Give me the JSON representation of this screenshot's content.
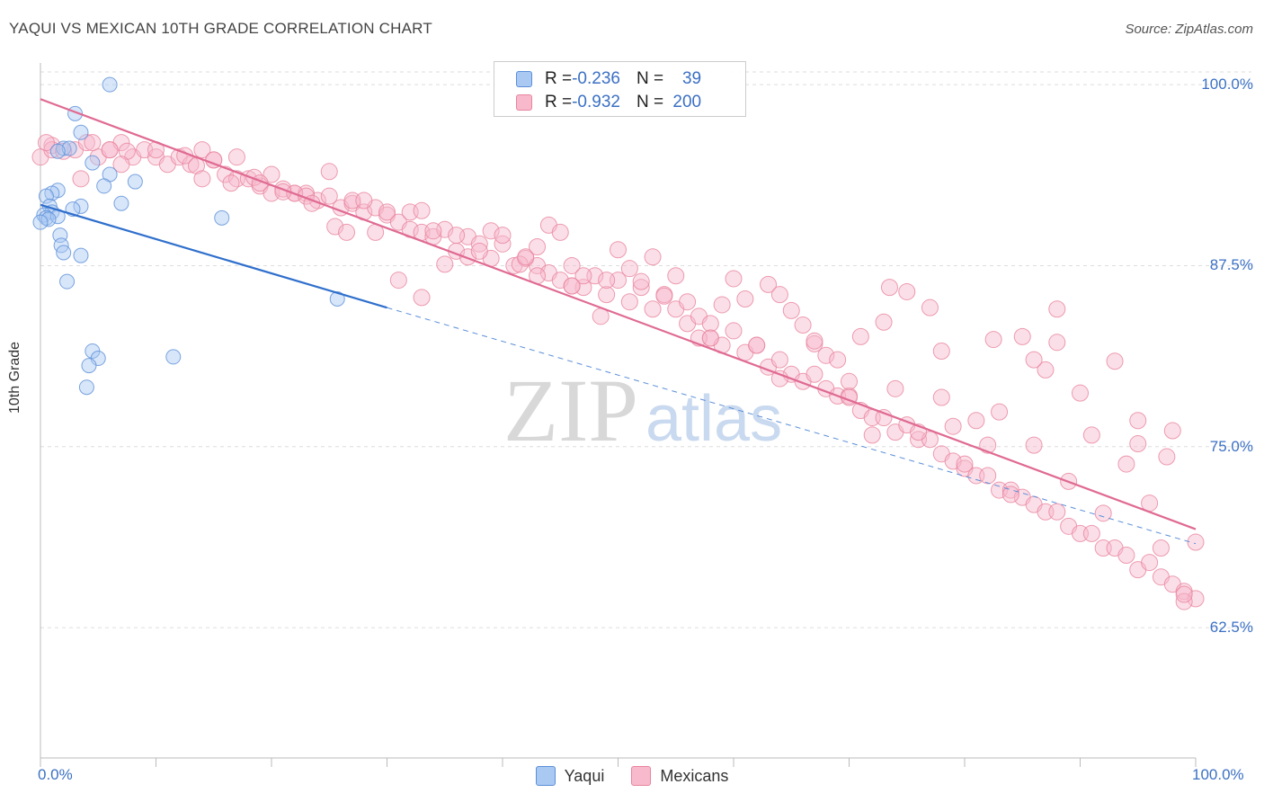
{
  "title": "YAQUI VS MEXICAN 10TH GRADE CORRELATION CHART",
  "source": "Source: ZipAtlas.com",
  "watermark": {
    "zip": "ZIP",
    "atlas": "atlas"
  },
  "legend": {
    "rows": [
      {
        "r_label": "R = ",
        "r_value": "-0.236",
        "n_label": "N = ",
        "n_value": "39",
        "color": "#a9c8f2",
        "border": "#5b8fd8"
      },
      {
        "r_label": "R = ",
        "r_value": "-0.932",
        "n_label": "N = ",
        "n_value": "200",
        "color": "#f7b9cb",
        "border": "#e8849f"
      }
    ]
  },
  "chart_data": {
    "type": "scatter",
    "xlabel": "",
    "ylabel": "10th Grade",
    "xlim": [
      0,
      100
    ],
    "ylim": [
      53.5,
      101.5
    ],
    "x_tick_labels": [
      "0.0%",
      "100.0%"
    ],
    "y_ticks": [
      {
        "value": 62.5,
        "label": "62.5%"
      },
      {
        "value": 75.0,
        "label": "75.0%"
      },
      {
        "value": 87.5,
        "label": "87.5%"
      },
      {
        "value": 100.0,
        "label": "100.0%"
      }
    ],
    "grid": true,
    "series": [
      {
        "name": "Yaqui",
        "color": "#5b8fd8",
        "fill": "#a9c8f2",
        "trend": {
          "x0": 0,
          "y0": 91.7,
          "x1": 30,
          "y1": 84.6,
          "dash_to_x": 100,
          "dash_to_y": 68.3
        },
        "points": [
          [
            6,
            100
          ],
          [
            3,
            98
          ],
          [
            3.5,
            96.7
          ],
          [
            2,
            95.6
          ],
          [
            2.5,
            95.6
          ],
          [
            1.5,
            95.4
          ],
          [
            4.5,
            94.6
          ],
          [
            6,
            93.8
          ],
          [
            8.2,
            93.3
          ],
          [
            5.5,
            93
          ],
          [
            1.5,
            92.7
          ],
          [
            1,
            92.5
          ],
          [
            0.5,
            92.3
          ],
          [
            7,
            91.8
          ],
          [
            3.5,
            91.6
          ],
          [
            2.8,
            91.4
          ],
          [
            0.8,
            91.6
          ],
          [
            1,
            91.2
          ],
          [
            0.3,
            91
          ],
          [
            0.5,
            90.8
          ],
          [
            1.5,
            90.9
          ],
          [
            0.7,
            90.7
          ],
          [
            0,
            90.5
          ],
          [
            15.7,
            90.8
          ],
          [
            1.7,
            89.6
          ],
          [
            1.8,
            88.9
          ],
          [
            2,
            88.4
          ],
          [
            3.5,
            88.2
          ],
          [
            2.3,
            86.4
          ],
          [
            25.7,
            85.2
          ],
          [
            4.5,
            81.6
          ],
          [
            5,
            81.1
          ],
          [
            11.5,
            81.2
          ],
          [
            4.2,
            80.6
          ],
          [
            4,
            79.1
          ]
        ]
      },
      {
        "name": "Mexicans",
        "color": "#e8849f",
        "fill": "#f7b9cb",
        "trend": {
          "x0": 0,
          "y0": 99.0,
          "x1": 100,
          "y1": 69.3
        },
        "points": [
          [
            0,
            95
          ],
          [
            1,
            95.8
          ],
          [
            3,
            95.5
          ],
          [
            4,
            96
          ],
          [
            5,
            95
          ],
          [
            6,
            95.5
          ],
          [
            7,
            96
          ],
          [
            8,
            95
          ],
          [
            9,
            95.5
          ],
          [
            10,
            95
          ],
          [
            11,
            94.5
          ],
          [
            12,
            95
          ],
          [
            13,
            94.5
          ],
          [
            14,
            95.5
          ],
          [
            15,
            94.8
          ],
          [
            16,
            93.8
          ],
          [
            17,
            93.5
          ],
          [
            18,
            93.5
          ],
          [
            19,
            93
          ],
          [
            20,
            92.5
          ],
          [
            21,
            92.8
          ],
          [
            22,
            92.5
          ],
          [
            23,
            92.5
          ],
          [
            24,
            92
          ],
          [
            25,
            92.3
          ],
          [
            26,
            91.5
          ],
          [
            27,
            91.8
          ],
          [
            28,
            91.2
          ],
          [
            29,
            91.5
          ],
          [
            30,
            91
          ],
          [
            31,
            90.5
          ],
          [
            32,
            90
          ],
          [
            33,
            89.8
          ],
          [
            34,
            89.5
          ],
          [
            35,
            90
          ],
          [
            36,
            88.5
          ],
          [
            37,
            89.5
          ],
          [
            38,
            89
          ],
          [
            39,
            88
          ],
          [
            40,
            89
          ],
          [
            41,
            87.5
          ],
          [
            42,
            88
          ],
          [
            43,
            87.5
          ],
          [
            44,
            87
          ],
          [
            45,
            86.5
          ],
          [
            46,
            87.5
          ],
          [
            47,
            86
          ],
          [
            48,
            86.8
          ],
          [
            49,
            85.5
          ],
          [
            50,
            86.5
          ],
          [
            51,
            85
          ],
          [
            52,
            86
          ],
          [
            53,
            84.5
          ],
          [
            54,
            85.5
          ],
          [
            55,
            84.5
          ],
          [
            56,
            83.5
          ],
          [
            57,
            84
          ],
          [
            58,
            82.5
          ],
          [
            59,
            82
          ],
          [
            60,
            83
          ],
          [
            61,
            81.5
          ],
          [
            62,
            82
          ],
          [
            63,
            80.5
          ],
          [
            64,
            81
          ],
          [
            65,
            80
          ],
          [
            66,
            79.5
          ],
          [
            67,
            80
          ],
          [
            68,
            79
          ],
          [
            69,
            78.5
          ],
          [
            70,
            78.5
          ],
          [
            71,
            77.5
          ],
          [
            72,
            77
          ],
          [
            73,
            77
          ],
          [
            74,
            76
          ],
          [
            75,
            76.5
          ],
          [
            76,
            75.5
          ],
          [
            77,
            75.5
          ],
          [
            78,
            74.5
          ],
          [
            79,
            74
          ],
          [
            80,
            73.5
          ],
          [
            81,
            73
          ],
          [
            82,
            73
          ],
          [
            83,
            72
          ],
          [
            84,
            72
          ],
          [
            85,
            71.5
          ],
          [
            86,
            71
          ],
          [
            87,
            70.5
          ],
          [
            88,
            70.5
          ],
          [
            89,
            69.5
          ],
          [
            90,
            69
          ],
          [
            91,
            69
          ],
          [
            92,
            68
          ],
          [
            93,
            68
          ],
          [
            94,
            67.5
          ],
          [
            95,
            66.5
          ],
          [
            96,
            67
          ],
          [
            97,
            66
          ],
          [
            98,
            65.5
          ],
          [
            99,
            65
          ],
          [
            100,
            64.5
          ],
          [
            1,
            95.5
          ],
          [
            3.5,
            93.5
          ],
          [
            6,
            95.5
          ],
          [
            7.5,
            95.4
          ],
          [
            10,
            95.5
          ],
          [
            12.5,
            95.1
          ],
          [
            13.5,
            94.4
          ],
          [
            15,
            94.8
          ],
          [
            17,
            95
          ],
          [
            18.5,
            93.6
          ],
          [
            20,
            93.8
          ],
          [
            22,
            92.5
          ],
          [
            23,
            92.3
          ],
          [
            23.5,
            91.8
          ],
          [
            25,
            94
          ],
          [
            27,
            92
          ],
          [
            28,
            92
          ],
          [
            29,
            89.8
          ],
          [
            30,
            91.2
          ],
          [
            32,
            91.2
          ],
          [
            33,
            91.3
          ],
          [
            34,
            89.9
          ],
          [
            35,
            87.6
          ],
          [
            36,
            89.6
          ],
          [
            37,
            88.1
          ],
          [
            38,
            88.5
          ],
          [
            39,
            89.9
          ],
          [
            40,
            89.6
          ],
          [
            41.5,
            87.6
          ],
          [
            42,
            88.1
          ],
          [
            43,
            88.8
          ],
          [
            44,
            90.3
          ],
          [
            45,
            89.8
          ],
          [
            46,
            86.1
          ],
          [
            47,
            86.8
          ],
          [
            48.5,
            84
          ],
          [
            49,
            86.5
          ],
          [
            50,
            88.6
          ],
          [
            51,
            87.3
          ],
          [
            52,
            86.4
          ],
          [
            53,
            88.1
          ],
          [
            54,
            85.4
          ],
          [
            55,
            86.8
          ],
          [
            56,
            85
          ],
          [
            57,
            82.5
          ],
          [
            58,
            83.5
          ],
          [
            59,
            84.8
          ],
          [
            60,
            86.6
          ],
          [
            61,
            85.2
          ],
          [
            62,
            82
          ],
          [
            63,
            86.2
          ],
          [
            64,
            79.7
          ],
          [
            65,
            84.4
          ],
          [
            66,
            83.4
          ],
          [
            67,
            82.1
          ],
          [
            68,
            81.3
          ],
          [
            69,
            81
          ],
          [
            70,
            78.4
          ],
          [
            71,
            82.6
          ],
          [
            72,
            75.8
          ],
          [
            73,
            83.6
          ],
          [
            74,
            79
          ],
          [
            75,
            85.7
          ],
          [
            76,
            76
          ],
          [
            77,
            84.6
          ],
          [
            78,
            78.4
          ],
          [
            79,
            76.4
          ],
          [
            80,
            73.8
          ],
          [
            81,
            76.8
          ],
          [
            82,
            75.1
          ],
          [
            83,
            77.4
          ],
          [
            84,
            71.7
          ],
          [
            85,
            82.6
          ],
          [
            86,
            75.1
          ],
          [
            87,
            80.3
          ],
          [
            88,
            84.5
          ],
          [
            89,
            72.6
          ],
          [
            90,
            78.7
          ],
          [
            91,
            75.8
          ],
          [
            92,
            70.4
          ],
          [
            93,
            80.9
          ],
          [
            94,
            73.8
          ],
          [
            95,
            76.8
          ],
          [
            96,
            71.1
          ],
          [
            97,
            68
          ],
          [
            98,
            76.1
          ],
          [
            99,
            64.3
          ],
          [
            100,
            68.4
          ],
          [
            0.5,
            96
          ],
          [
            2,
            95.4
          ],
          [
            4.5,
            96
          ],
          [
            7,
            94.5
          ],
          [
            14,
            93.5
          ],
          [
            16.5,
            93.2
          ],
          [
            19,
            93.2
          ],
          [
            21,
            92.6
          ],
          [
            25.5,
            90.2
          ],
          [
            26.5,
            89.8
          ],
          [
            31,
            86.5
          ],
          [
            33,
            85.3
          ],
          [
            43,
            86.8
          ],
          [
            46,
            86.1
          ],
          [
            58,
            82.5
          ],
          [
            64,
            85.5
          ],
          [
            67,
            82.3
          ],
          [
            70,
            79.5
          ],
          [
            73.5,
            86
          ],
          [
            78,
            81.6
          ],
          [
            82.5,
            82.4
          ],
          [
            86,
            81
          ],
          [
            88,
            82.2
          ],
          [
            95,
            75.2
          ],
          [
            97.5,
            74.3
          ],
          [
            99,
            64.8
          ]
        ]
      }
    ]
  }
}
